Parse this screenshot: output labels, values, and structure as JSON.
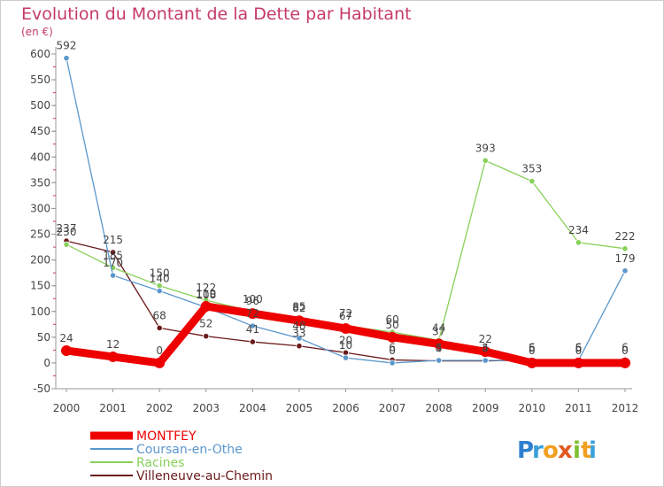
{
  "chart_data": {
    "type": "line",
    "title": "Evolution du Montant de la Dette par Habitant",
    "unit_label": "(en €)",
    "categories": [
      "2000",
      "2001",
      "2002",
      "2003",
      "2004",
      "2005",
      "2006",
      "2007",
      "2008",
      "2009",
      "2010",
      "2011",
      "2012"
    ],
    "ylim": [
      -50,
      600
    ],
    "yticks": [
      -50,
      0,
      50,
      100,
      150,
      200,
      250,
      300,
      350,
      400,
      450,
      500,
      550,
      600
    ],
    "ytick_labels": [
      "-50",
      "0",
      "50",
      "100",
      "150",
      "200",
      "250",
      "300",
      "350",
      "400",
      "450",
      "500",
      "550",
      "600"
    ],
    "grid": false,
    "legend_position": "bottom-left",
    "series": [
      {
        "name": "Villeneuve-au-Chemin",
        "color": "#6b1a1a",
        "values": [
          237,
          215,
          68,
          52,
          41,
          33,
          20,
          6,
          4,
          4,
          6,
          6,
          6
        ],
        "labels": [
          "237",
          "215",
          "68",
          "52",
          "41",
          "33",
          "20",
          "6",
          "4",
          "4",
          "6",
          "6",
          "6"
        ]
      },
      {
        "name": "Racines",
        "color": "#88d05a",
        "values": [
          230,
          185,
          150,
          122,
          100,
          85,
          72,
          60,
          44,
          393,
          353,
          234,
          222
        ],
        "labels": [
          "230",
          "185",
          "150",
          "122",
          "100",
          "85",
          "72",
          "60",
          "44",
          "393",
          "353",
          "234",
          "222"
        ]
      },
      {
        "name": "Coursan-en-Othe",
        "color": "#5b97cc",
        "values": [
          592,
          170,
          140,
          108,
          72,
          48,
          10,
          0,
          5,
          5,
          5,
          5,
          179
        ],
        "labels": [
          "592",
          "170",
          "140",
          "108",
          "72",
          "48",
          "10",
          "0",
          "5",
          "5",
          "5",
          "5",
          "179"
        ]
      },
      {
        "name": "MONTFEY",
        "color": "#ee0000",
        "values": [
          24,
          12,
          0,
          110,
          96,
          82,
          67,
          50,
          37,
          22,
          0,
          0,
          0
        ],
        "labels": [
          "24",
          "12",
          "0",
          "110",
          "96",
          "82",
          "67",
          "50",
          "37",
          "22",
          "0",
          "0",
          "0"
        ]
      }
    ],
    "legend": [
      {
        "name": "MONTFEY",
        "color": "#ee0000",
        "thick": true
      },
      {
        "name": "Coursan-en-Othe",
        "color": "#5b97cc",
        "thick": false
      },
      {
        "name": "Racines",
        "color": "#88d05a",
        "thick": false
      },
      {
        "name": "Villeneuve-au-Chemin",
        "color": "#6b1a1a",
        "thick": false
      }
    ]
  },
  "brand": {
    "letters": [
      "P",
      "r",
      "o",
      "x",
      "i",
      "t",
      "i"
    ],
    "colors": [
      "#2f7fcf",
      "#3aa0dc",
      "#f0a020",
      "#e05a20",
      "#7fbf30",
      "#f0a020",
      "#3aa0dc"
    ]
  }
}
